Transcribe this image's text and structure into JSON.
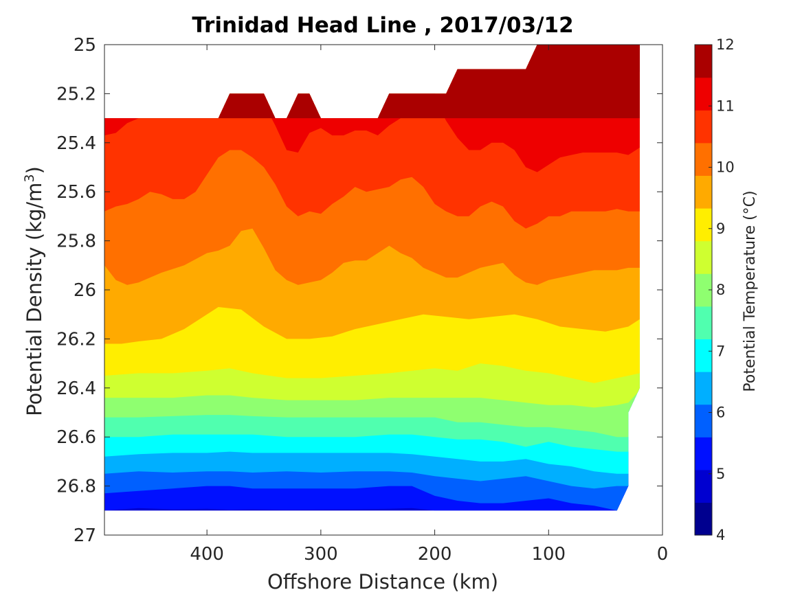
{
  "chart_data": {
    "type": "heatmap",
    "subtype": "filled-contour",
    "title": "Trinidad Head Line , 2017/03/12",
    "xlabel": "Offshore Distance (km)",
    "ylabel_parts": [
      "Potential Density (kg/m",
      "3",
      ")"
    ],
    "colorbar_label": "Potential Temperature (°C)",
    "x_ticks": [
      400,
      300,
      200,
      100,
      0
    ],
    "x_tick_labels": [
      "400",
      "300",
      "200",
      "100",
      "0"
    ],
    "xlim": [
      490,
      0
    ],
    "x_reversed": true,
    "y_ticks": [
      25,
      25.2,
      25.4,
      25.6,
      25.8,
      26,
      26.2,
      26.4,
      26.6,
      26.8,
      27
    ],
    "y_tick_labels": [
      "25",
      "25.2",
      "25.4",
      "25.6",
      "25.8",
      "26",
      "26.2",
      "26.4",
      "26.6",
      "26.8",
      "27"
    ],
    "ylim": [
      25,
      27
    ],
    "y_reversed": true,
    "colorbar_ticks": [
      4,
      5,
      6,
      7,
      8,
      9,
      10,
      11,
      12
    ],
    "colorbar_tick_labels": [
      "4",
      "5",
      "6",
      "7",
      "8",
      "9",
      "10",
      "11",
      "12"
    ],
    "color_range": [
      4,
      12
    ],
    "colormap": [
      "#00008f",
      "#0000d0",
      "#0010ff",
      "#0060ff",
      "#00afff",
      "#00ffff",
      "#50ffaf",
      "#8fff70",
      "#cfff30",
      "#ffee00",
      "#ffaa00",
      "#ff7000",
      "#ff3300",
      "#ee0000",
      "#aa0000"
    ],
    "data_x_range": [
      490,
      20
    ],
    "levels": [
      {
        "threshold": 4.5,
        "color": "#0000d0",
        "x": [
          490,
          20
        ],
        "y": [
          26.9,
          26.9
        ]
      },
      {
        "threshold": 5.0,
        "color": "#0010ff",
        "x": [
          490,
          460,
          430,
          400,
          380,
          360,
          330,
          300,
          270,
          240,
          220,
          200,
          180,
          160,
          140,
          120,
          100,
          80,
          60,
          40,
          20
        ],
        "y": [
          26.9,
          26.89,
          26.895,
          26.893,
          26.897,
          26.895,
          26.897,
          26.896,
          26.895,
          26.893,
          26.89,
          26.9,
          26.9,
          26.9,
          26.9,
          26.9,
          26.9,
          26.9,
          26.9,
          26.9,
          26.9
        ]
      },
      {
        "threshold": 5.5,
        "color": "#0060ff",
        "x": [
          490,
          460,
          430,
          400,
          380,
          360,
          330,
          300,
          270,
          240,
          220,
          200,
          180,
          160,
          140,
          120,
          100,
          80,
          60,
          40,
          20
        ],
        "y": [
          26.83,
          26.82,
          26.81,
          26.8,
          26.8,
          26.81,
          26.81,
          26.81,
          26.81,
          26.8,
          26.8,
          26.84,
          26.86,
          26.87,
          26.87,
          26.86,
          26.85,
          26.87,
          26.88,
          26.9,
          26.9
        ]
      },
      {
        "threshold": 6.0,
        "color": "#00afff",
        "x": [
          490,
          460,
          430,
          400,
          380,
          360,
          330,
          300,
          270,
          240,
          220,
          200,
          180,
          160,
          140,
          120,
          100,
          80,
          60,
          40,
          20
        ],
        "y": [
          26.75,
          26.74,
          26.745,
          26.74,
          26.74,
          26.745,
          26.74,
          26.745,
          26.74,
          26.74,
          26.745,
          26.76,
          26.77,
          26.78,
          26.77,
          26.76,
          26.78,
          26.8,
          26.81,
          26.8,
          26.8
        ]
      },
      {
        "threshold": 6.5,
        "color": "#00ffff",
        "x": [
          490,
          460,
          430,
          400,
          380,
          360,
          330,
          300,
          270,
          240,
          220,
          200,
          180,
          160,
          140,
          120,
          100,
          80,
          60,
          40,
          20
        ],
        "y": [
          26.68,
          26.67,
          26.665,
          26.665,
          26.66,
          26.665,
          26.665,
          26.665,
          26.665,
          26.665,
          26.67,
          26.68,
          26.69,
          26.7,
          26.7,
          26.69,
          26.71,
          26.72,
          26.74,
          26.75,
          26.75
        ]
      },
      {
        "threshold": 7.0,
        "color": "#50ffaf",
        "x": [
          490,
          460,
          430,
          400,
          380,
          360,
          330,
          300,
          270,
          240,
          220,
          200,
          180,
          160,
          140,
          120,
          100,
          80,
          60,
          40,
          30,
          20
        ],
        "y": [
          26.6,
          26.6,
          26.59,
          26.59,
          26.59,
          26.59,
          26.6,
          26.6,
          26.6,
          26.59,
          26.59,
          26.6,
          26.61,
          26.61,
          26.62,
          26.64,
          26.62,
          26.64,
          26.65,
          26.66,
          26.66,
          26.66
        ]
      },
      {
        "threshold": 7.5,
        "color": "#8fff70",
        "x": [
          490,
          460,
          430,
          400,
          380,
          360,
          330,
          300,
          270,
          240,
          220,
          200,
          180,
          160,
          140,
          120,
          100,
          80,
          60,
          40,
          30,
          20
        ],
        "y": [
          26.52,
          26.52,
          26.515,
          26.51,
          26.51,
          26.515,
          26.52,
          26.52,
          26.52,
          26.52,
          26.52,
          26.52,
          26.54,
          26.54,
          26.55,
          26.56,
          26.56,
          26.57,
          26.58,
          26.6,
          26.6,
          26.6
        ]
      },
      {
        "threshold": 8.0,
        "color": "#cfff30",
        "x": [
          490,
          460,
          430,
          400,
          380,
          360,
          330,
          300,
          270,
          240,
          220,
          200,
          180,
          160,
          140,
          120,
          100,
          80,
          60,
          40,
          30,
          20
        ],
        "y": [
          26.44,
          26.44,
          26.44,
          26.43,
          26.43,
          26.44,
          26.45,
          26.45,
          26.45,
          26.44,
          26.44,
          26.44,
          26.44,
          26.44,
          26.45,
          26.46,
          26.47,
          26.47,
          26.48,
          26.47,
          26.46,
          26.41
        ]
      },
      {
        "threshold": 8.5,
        "color": "#ffee00",
        "x": [
          490,
          460,
          430,
          400,
          380,
          360,
          330,
          300,
          270,
          240,
          220,
          200,
          180,
          160,
          140,
          120,
          100,
          80,
          60,
          40,
          30,
          20
        ],
        "y": [
          26.35,
          26.34,
          26.34,
          26.33,
          26.32,
          26.34,
          26.36,
          26.36,
          26.35,
          26.34,
          26.33,
          26.32,
          26.33,
          26.3,
          26.31,
          26.33,
          26.34,
          26.36,
          26.38,
          26.36,
          26.35,
          26.34
        ]
      },
      {
        "threshold": 9.0,
        "color": "#ffaa00",
        "x": [
          490,
          475,
          460,
          440,
          420,
          400,
          390,
          370,
          350,
          330,
          310,
          290,
          270,
          250,
          230,
          210,
          190,
          170,
          150,
          130,
          110,
          90,
          70,
          50,
          30,
          20
        ],
        "y": [
          26.22,
          26.22,
          26.21,
          26.2,
          26.16,
          26.1,
          26.07,
          26.08,
          26.15,
          26.2,
          26.2,
          26.19,
          26.16,
          26.14,
          26.12,
          26.1,
          26.11,
          26.12,
          26.11,
          26.1,
          26.12,
          26.15,
          26.16,
          26.17,
          26.15,
          26.12
        ]
      },
      {
        "threshold": 9.5,
        "color": "#ff7000",
        "x": [
          490,
          480,
          470,
          460,
          450,
          440,
          420,
          400,
          390,
          380,
          370,
          360,
          350,
          340,
          330,
          320,
          310,
          300,
          290,
          280,
          270,
          260,
          250,
          240,
          230,
          220,
          210,
          200,
          190,
          180,
          170,
          160,
          150,
          140,
          130,
          120,
          110,
          100,
          90,
          80,
          70,
          60,
          50,
          40,
          30,
          20
        ],
        "y": [
          25.9,
          25.96,
          25.98,
          25.97,
          25.95,
          25.93,
          25.9,
          25.85,
          25.84,
          25.82,
          25.76,
          25.75,
          25.83,
          25.92,
          25.96,
          25.98,
          25.97,
          25.96,
          25.93,
          25.89,
          25.88,
          25.88,
          25.85,
          25.82,
          25.85,
          25.87,
          25.91,
          25.93,
          25.95,
          25.95,
          25.93,
          25.91,
          25.9,
          25.89,
          25.94,
          25.97,
          25.98,
          25.96,
          25.95,
          25.94,
          25.93,
          25.92,
          25.92,
          25.92,
          25.91,
          25.91
        ]
      },
      {
        "threshold": 10.0,
        "color": "#ff3300",
        "x": [
          490,
          480,
          470,
          460,
          450,
          440,
          430,
          420,
          410,
          400,
          390,
          380,
          370,
          360,
          350,
          340,
          330,
          320,
          310,
          300,
          290,
          280,
          270,
          260,
          250,
          240,
          230,
          220,
          210,
          200,
          190,
          180,
          170,
          160,
          150,
          140,
          130,
          120,
          110,
          100,
          90,
          80,
          70,
          60,
          50,
          40,
          30,
          20
        ],
        "y": [
          25.68,
          25.66,
          25.65,
          25.63,
          25.6,
          25.61,
          25.63,
          25.63,
          25.6,
          25.53,
          25.46,
          25.43,
          25.43,
          25.46,
          25.5,
          25.57,
          25.66,
          25.7,
          25.68,
          25.69,
          25.65,
          25.62,
          25.58,
          25.6,
          25.59,
          25.58,
          25.55,
          25.54,
          25.58,
          25.65,
          25.68,
          25.7,
          25.7,
          25.66,
          25.64,
          25.66,
          25.72,
          25.75,
          25.73,
          25.7,
          25.7,
          25.68,
          25.68,
          25.68,
          25.68,
          25.67,
          25.68,
          25.68
        ]
      },
      {
        "threshold": 10.5,
        "color": "#ee0000",
        "x": [
          490,
          480,
          470,
          460,
          450,
          440,
          430,
          420,
          410,
          400,
          390,
          380,
          370,
          360,
          350,
          340,
          330,
          320,
          310,
          300,
          290,
          280,
          270,
          260,
          250,
          240,
          230,
          220,
          210,
          200,
          190,
          180,
          170,
          160,
          150,
          140,
          130,
          120,
          110,
          100,
          90,
          80,
          70,
          60,
          50,
          40,
          30,
          20
        ],
        "y": [
          25.37,
          25.36,
          25.32,
          25.3,
          25.3,
          25.3,
          25.3,
          25.3,
          25.3,
          25.3,
          25.3,
          25.2,
          25.2,
          25.2,
          25.24,
          25.33,
          25.43,
          25.44,
          25.36,
          25.34,
          25.37,
          25.37,
          25.35,
          25.35,
          25.37,
          25.33,
          25.3,
          25.26,
          25.2,
          25.22,
          25.31,
          25.38,
          25.43,
          25.43,
          25.4,
          25.4,
          25.43,
          25.5,
          25.52,
          25.49,
          25.46,
          25.45,
          25.44,
          25.44,
          25.44,
          25.44,
          25.45,
          25.42
        ]
      },
      {
        "threshold": 11.0,
        "color": "#aa0000",
        "x": [
          490,
          480,
          470,
          460,
          450,
          440,
          430,
          420,
          410,
          400,
          390,
          380,
          370,
          360,
          350,
          340,
          330,
          320,
          310,
          300,
          290,
          280,
          270,
          260,
          250,
          240,
          230,
          220,
          210,
          200,
          190,
          180,
          170,
          160,
          150,
          140,
          130,
          120,
          110,
          100,
          90,
          80,
          70,
          60,
          50,
          40,
          30,
          20
        ],
        "y": [
          25.3,
          25.3,
          25.3,
          25.3,
          25.3,
          25.3,
          25.3,
          25.3,
          25.3,
          25.3,
          25.3,
          25.2,
          25.2,
          25.2,
          25.2,
          25.3,
          25.3,
          25.2,
          25.2,
          25.2,
          25.3,
          25.3,
          25.3,
          25.3,
          25.3,
          25.3,
          25.2,
          25.2,
          25.2,
          25.2,
          25.17,
          25.1,
          25.1,
          25.1,
          25.1,
          25.1,
          25.1,
          25.19,
          25.21,
          25.19,
          25.16,
          25.18,
          25.18,
          25.17,
          25.17,
          25.17,
          25.17,
          25.11
        ]
      },
      {
        "threshold": 11.5,
        "color": "#aa0000",
        "x": [
          490,
          20
        ],
        "y": [
          25.3,
          25.3
        ]
      }
    ],
    "domain_top": {
      "x": [
        490,
        480,
        470,
        460,
        450,
        440,
        430,
        420,
        410,
        400,
        390,
        380,
        375,
        370,
        360,
        350,
        345,
        340,
        335,
        330,
        320,
        315,
        310,
        305,
        300,
        290,
        280,
        270,
        260,
        250,
        240,
        230,
        220,
        210,
        200,
        190,
        180,
        170,
        160,
        150,
        140,
        130,
        120,
        115,
        110,
        100,
        90,
        80,
        70,
        60,
        50,
        40,
        30,
        20
      ],
      "y": [
        25.3,
        25.3,
        25.3,
        25.3,
        25.3,
        25.3,
        25.3,
        25.3,
        25.3,
        25.3,
        25.3,
        25.2,
        25.2,
        25.2,
        25.2,
        25.2,
        25.25,
        25.3,
        25.3,
        25.3,
        25.2,
        25.2,
        25.2,
        25.25,
        25.3,
        25.3,
        25.3,
        25.3,
        25.3,
        25.3,
        25.2,
        25.2,
        25.2,
        25.2,
        25.2,
        25.2,
        25.1,
        25.1,
        25.1,
        25.1,
        25.1,
        25.1,
        25.1,
        25.05,
        25.0,
        25.0,
        25.0,
        25.0,
        25.0,
        25.0,
        25.0,
        25.0,
        25.0,
        25.0
      ]
    },
    "domain_bottom": {
      "x": [
        490,
        40,
        30,
        30,
        20,
        20
      ],
      "y": [
        26.9,
        26.9,
        26.8,
        26.5,
        26.4,
        26.4
      ]
    }
  }
}
